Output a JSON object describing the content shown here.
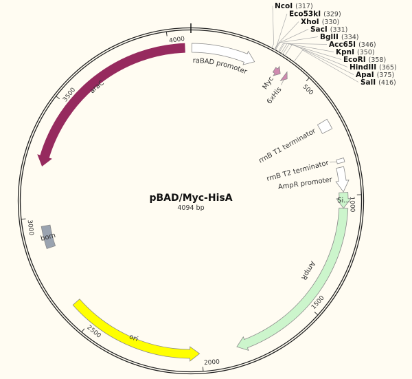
{
  "plasmid": {
    "name": "pBAD/Myc-HisA",
    "length_label": "4094 bp",
    "length_bp": 4094
  },
  "ticks": [
    {
      "bp": 500,
      "label": "500"
    },
    {
      "bp": 1000,
      "label": "1000"
    },
    {
      "bp": 1500,
      "label": "1500"
    },
    {
      "bp": 2000,
      "label": "2000"
    },
    {
      "bp": 2500,
      "label": "2500"
    },
    {
      "bp": 3000,
      "label": "3000"
    },
    {
      "bp": 3500,
      "label": "3500"
    },
    {
      "bp": 4000,
      "label": "4000"
    }
  ],
  "features": [
    {
      "id": "araBAD-promoter",
      "label": "araBAD promoter",
      "start": 4,
      "end": 280,
      "strand": 1,
      "type": "arrow",
      "color": "#ffffff",
      "label_style": "arc-inside"
    },
    {
      "id": "myc",
      "label": "Myc",
      "start": 370,
      "end": 400,
      "strand": 1,
      "type": "arrow",
      "color": "#d08ab0",
      "label_style": "radial"
    },
    {
      "id": "6xhis",
      "label": "6xHis",
      "start": 418,
      "end": 436,
      "strand": 1,
      "type": "arrow",
      "color": "#d08ab0",
      "label_style": "radial"
    },
    {
      "id": "rrnB-T1",
      "label": "rrnB T1 terminator",
      "start": 672,
      "end": 716,
      "strand": 0,
      "type": "box",
      "color": "#ffffff",
      "label_style": "radial"
    },
    {
      "id": "rrnB-T2",
      "label": "rrnB T2 terminator",
      "start": 845,
      "end": 862,
      "strand": 0,
      "type": "box",
      "color": "#ffffff",
      "label_style": "radial"
    },
    {
      "id": "ampR-promoter",
      "label": "AmpR promoter",
      "start": 880,
      "end": 985,
      "strand": 1,
      "type": "arrow",
      "color": "#ffffff",
      "label_style": "radial"
    },
    {
      "id": "signal",
      "label": "Si...",
      "start": 988,
      "end": 1055,
      "strand": 1,
      "type": "box",
      "color": "#ccf5cc",
      "label_style": "on"
    },
    {
      "id": "ampR",
      "label": "AmpR",
      "start": 1055,
      "end": 1848,
      "strand": 1,
      "type": "arrow",
      "color": "#ccf5cc",
      "label_style": "arc-inside"
    },
    {
      "id": "ori",
      "label": "ori",
      "start": 2010,
      "end": 2600,
      "strand": -1,
      "type": "arrow",
      "color": "#ffff00",
      "label_style": "on"
    },
    {
      "id": "bom",
      "label": "bom",
      "start": 2862,
      "end": 2960,
      "strand": 0,
      "type": "box",
      "color": "#9aa3b0",
      "label_style": "on"
    },
    {
      "id": "araC",
      "label": "araC",
      "start": 3220,
      "end": 4068,
      "strand": -1,
      "type": "arrow",
      "color": "#962a5e",
      "label_style": "on-white"
    }
  ],
  "enzymes": [
    {
      "name": "NcoI",
      "pos": "(317)",
      "bp": 317
    },
    {
      "name": "Eco53kI",
      "pos": "(329)",
      "bp": 329
    },
    {
      "name": "XhoI",
      "pos": "(330)",
      "bp": 330
    },
    {
      "name": "SacI",
      "pos": "(331)",
      "bp": 331
    },
    {
      "name": "BglII",
      "pos": "(334)",
      "bp": 334
    },
    {
      "name": "Acc65I",
      "pos": "(346)",
      "bp": 346
    },
    {
      "name": "KpnI",
      "pos": "(350)",
      "bp": 350
    },
    {
      "name": "EcoRI",
      "pos": "(358)",
      "bp": 358
    },
    {
      "name": "HindIII",
      "pos": "(365)",
      "bp": 365
    },
    {
      "name": "ApaI",
      "pos": "(375)",
      "bp": 375
    },
    {
      "name": "SalI",
      "pos": "(416)",
      "bp": 416
    }
  ]
}
